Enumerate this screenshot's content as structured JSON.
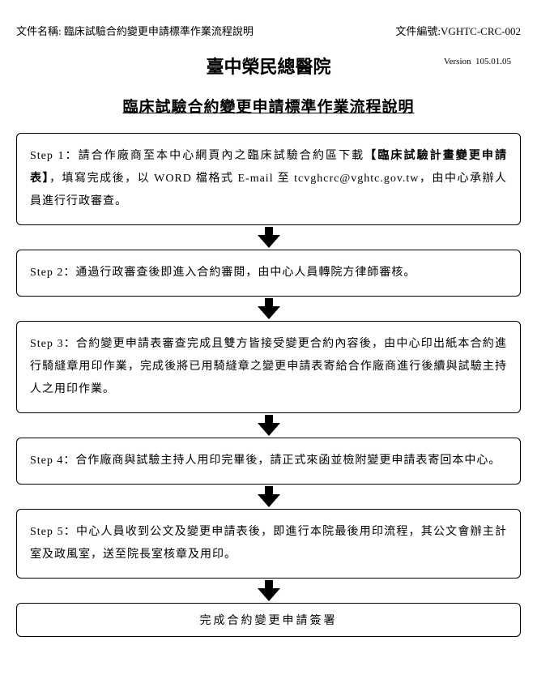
{
  "header": {
    "doc_name_label": "文件名稱:",
    "doc_name": "臨床試驗合約變更申請標準作業流程說明",
    "doc_no_label": "文件編號:",
    "doc_no": "VGHTC-CRC-002"
  },
  "main_title": "臺中榮民總醫院",
  "version_label": "Version",
  "version": "105.01.05",
  "sub_title": "臨床試驗合約變更申請標準作業流程說明",
  "steps": [
    {
      "prefix": "Step 1：請合作廠商至本中心網頁內之臨床試驗合約區下載",
      "bold": "【臨床試驗計畫變更申請表】",
      "suffix": "，填寫完成後，以 WORD 檔格式 E-mail 至 tcvghcrc@vghtc.gov.tw，由中心承辦人員進行行政審查。"
    },
    {
      "text": "Step 2：通過行政審查後即進入合約審閱，由中心人員轉院方律師審核。"
    },
    {
      "text": "Step 3：合約變更申請表審查完成且雙方皆接受變更合約內容後，由中心印出紙本合約進行騎縫章用印作業，完成後將已用騎縫章之變更申請表寄給合作廠商進行後續與試驗主持人之用印作業。"
    },
    {
      "text": "Step 4：合作廠商與試驗主持人用印完畢後，請正式來函並檢附變更申請表寄回本中心。"
    },
    {
      "text": "Step 5：中心人員收到公文及變更申請表後，即進行本院最後用印流程，其公文會辦主計室及政風室，送至院長室核章及用印。"
    }
  ],
  "final": "完成合約變更申請簽署",
  "colors": {
    "background": "#ffffff",
    "text": "#000000",
    "border": "#000000"
  }
}
